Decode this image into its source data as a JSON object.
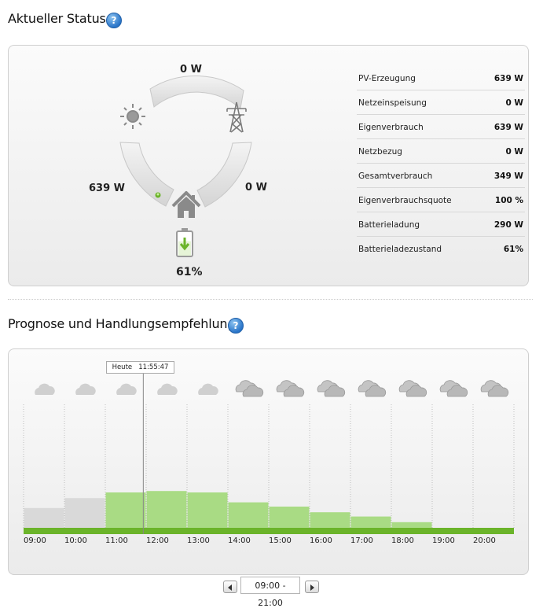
{
  "status_section": {
    "title": "Aktueller Status",
    "help_glyph": "?",
    "flow": {
      "top_value": "0 W",
      "left_value": "639 W",
      "right_value": "0 W",
      "battery_percent": "61%",
      "battery_level": 0.61
    },
    "table": [
      {
        "label": "PV-Erzeugung",
        "value": "639 W"
      },
      {
        "label": "Netzeinspeisung",
        "value": "0 W"
      },
      {
        "label": "Eigenverbrauch",
        "value": "639 W"
      },
      {
        "label": "Netzbezug",
        "value": "0 W"
      },
      {
        "label": "Gesamtverbrauch",
        "value": "349 W"
      },
      {
        "label": "Eigenverbrauchsquote",
        "value": "100 %"
      },
      {
        "label": "Batterieladung",
        "value": "290 W"
      },
      {
        "label": "Batterieladezustand",
        "value": "61%"
      }
    ],
    "icons": {
      "sun": "sun-icon",
      "grid": "power-pylon-icon",
      "house": "house-icon",
      "battery": "battery-icon"
    },
    "colors": {
      "green": "#6bb42a",
      "arc_gray": "#d8d8d8"
    }
  },
  "forecast_section": {
    "title": "Prognose und Handlungsempfehlung",
    "help_glyph": "?",
    "now_label": "Heute   11:55:47",
    "weather": [
      {
        "hour": "09:00",
        "icon": "cloud-icon"
      },
      {
        "hour": "10:00",
        "icon": "cloud-icon"
      },
      {
        "hour": "11:00",
        "icon": "cloud-icon"
      },
      {
        "hour": "12:00",
        "icon": "cloud-icon"
      },
      {
        "hour": "13:00",
        "icon": "cloud-icon"
      },
      {
        "hour": "14:00",
        "icon": "clouds-icon"
      },
      {
        "hour": "15:00",
        "icon": "clouds-icon"
      },
      {
        "hour": "16:00",
        "icon": "clouds-icon"
      },
      {
        "hour": "17:00",
        "icon": "clouds-icon"
      },
      {
        "hour": "18:00",
        "icon": "clouds-icon"
      },
      {
        "hour": "19:00",
        "icon": "clouds-icon"
      },
      {
        "hour": "20:00",
        "icon": "clouds-icon"
      }
    ],
    "range_label": "09:00 - 21:00",
    "colors": {
      "bar_green": "#6bb42a",
      "bar_light": "#a9db84",
      "bar_gray": "#d9d9d9"
    }
  },
  "chart_data": {
    "type": "bar",
    "categories": [
      "09:00",
      "10:00",
      "11:00",
      "12:00",
      "13:00",
      "14:00",
      "15:00",
      "16:00",
      "17:00",
      "18:00",
      "19:00",
      "20:00"
    ],
    "series": [
      {
        "values": [
          0.14,
          0.21,
          0.25,
          0.26,
          0.25,
          0.18,
          0.15,
          0.11,
          0.08,
          0.04,
          0.0,
          0.0
        ]
      }
    ],
    "title": "",
    "xlabel": "",
    "ylabel": "",
    "ylim": [
      0,
      1
    ],
    "past_until": "11:55:47",
    "grid": "vertical"
  }
}
